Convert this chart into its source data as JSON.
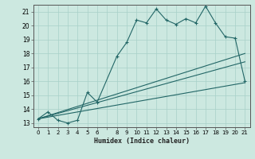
{
  "xlabel": "Humidex (Indice chaleur)",
  "bg_color": "#cce8e0",
  "grid_color": "#a8d0c8",
  "line_color": "#226666",
  "xlim": [
    -0.5,
    21.5
  ],
  "ylim": [
    12.7,
    21.5
  ],
  "yticks": [
    13,
    14,
    15,
    16,
    17,
    18,
    19,
    20,
    21
  ],
  "xtick_positions": [
    0,
    1,
    2,
    3,
    4,
    5,
    6,
    7,
    8,
    9,
    10,
    11,
    12,
    13,
    14,
    15,
    16,
    17,
    18,
    19,
    20,
    21
  ],
  "xtick_labels": [
    "0",
    "1",
    "2",
    "3",
    "4",
    "5",
    "6",
    "",
    "8",
    "9",
    "10",
    "11",
    "12",
    "13",
    "14",
    "15",
    "16",
    "17",
    "18",
    "19",
    "20",
    "21"
  ],
  "line1_x": [
    0,
    1,
    2,
    3,
    4,
    5,
    6,
    8,
    9,
    10,
    11,
    12,
    13,
    14,
    15,
    16,
    17,
    18,
    19,
    20,
    21
  ],
  "line1_y": [
    13.3,
    13.8,
    13.2,
    13.0,
    13.2,
    15.2,
    14.5,
    17.8,
    18.8,
    20.4,
    20.2,
    21.2,
    20.4,
    20.1,
    20.5,
    20.2,
    21.4,
    20.2,
    19.2,
    19.1,
    16.0
  ],
  "line2_x": [
    0,
    21
  ],
  "line2_y": [
    13.3,
    18.0
  ],
  "line3_x": [
    0,
    21
  ],
  "line3_y": [
    13.3,
    17.4
  ],
  "line4_x": [
    0,
    21
  ],
  "line4_y": [
    13.3,
    15.9
  ]
}
